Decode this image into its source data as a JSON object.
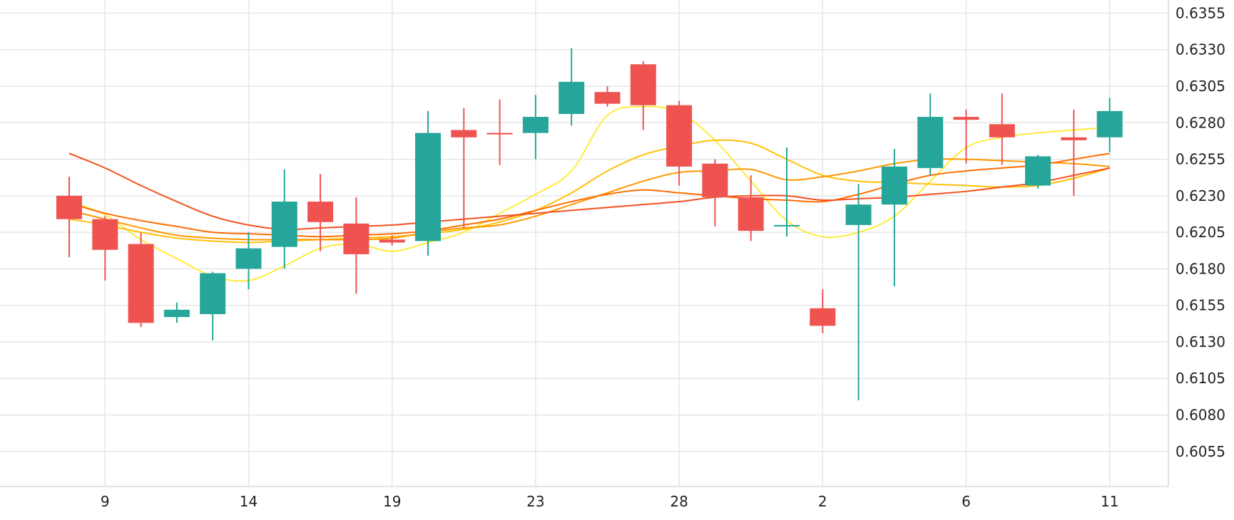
{
  "chart_data": {
    "type": "candlestick",
    "x_tick_labels": [
      "9",
      "14",
      "19",
      "23",
      "28",
      "2",
      "6",
      "11"
    ],
    "y_tick_labels": [
      "0.6055",
      "0.6080",
      "0.6105",
      "0.6130",
      "0.6155",
      "0.6180",
      "0.6205",
      "0.6230",
      "0.6255",
      "0.6280",
      "0.6305",
      "0.6330",
      "0.6355"
    ],
    "y_ticks": [
      0.6055,
      0.608,
      0.6105,
      0.613,
      0.6155,
      0.618,
      0.6205,
      0.623,
      0.6255,
      0.628,
      0.6305,
      0.633,
      0.6355
    ],
    "ylim": [
      0.6031,
      0.6364
    ],
    "grid": true,
    "colors": {
      "up": "#26a69a",
      "down": "#ef5350"
    },
    "candles": [
      {
        "o": 0.623,
        "h": 0.6243,
        "l": 0.6188,
        "c": 0.6214
      },
      {
        "o": 0.6214,
        "h": 0.6216,
        "l": 0.6172,
        "c": 0.6193
      },
      {
        "o": 0.6197,
        "h": 0.6205,
        "l": 0.614,
        "c": 0.6143
      },
      {
        "o": 0.6147,
        "h": 0.6157,
        "l": 0.6143,
        "c": 0.6152
      },
      {
        "o": 0.6149,
        "h": 0.6178,
        "l": 0.6131,
        "c": 0.6177
      },
      {
        "o": 0.618,
        "h": 0.6205,
        "l": 0.6166,
        "c": 0.6194
      },
      {
        "o": 0.6195,
        "h": 0.6248,
        "l": 0.618,
        "c": 0.6226
      },
      {
        "o": 0.6226,
        "h": 0.6245,
        "l": 0.6192,
        "c": 0.6212
      },
      {
        "o": 0.6211,
        "h": 0.6229,
        "l": 0.6163,
        "c": 0.619
      },
      {
        "o": 0.62,
        "h": 0.6203,
        "l": 0.6196,
        "c": 0.6198
      },
      {
        "o": 0.6199,
        "h": 0.6288,
        "l": 0.6189,
        "c": 0.6273
      },
      {
        "o": 0.6275,
        "h": 0.629,
        "l": 0.6208,
        "c": 0.627
      },
      {
        "o": 0.6273,
        "h": 0.6296,
        "l": 0.6251,
        "c": 0.6272
      },
      {
        "o": 0.6273,
        "h": 0.6299,
        "l": 0.6255,
        "c": 0.6284
      },
      {
        "o": 0.6286,
        "h": 0.6331,
        "l": 0.6278,
        "c": 0.6308
      },
      {
        "o": 0.6301,
        "h": 0.6305,
        "l": 0.6291,
        "c": 0.6293
      },
      {
        "o": 0.632,
        "h": 0.6322,
        "l": 0.6275,
        "c": 0.6292
      },
      {
        "o": 0.6292,
        "h": 0.6295,
        "l": 0.6237,
        "c": 0.625
      },
      {
        "o": 0.6252,
        "h": 0.6255,
        "l": 0.6209,
        "c": 0.6229
      },
      {
        "o": 0.6229,
        "h": 0.6244,
        "l": 0.6199,
        "c": 0.6206
      },
      {
        "o": 0.6209,
        "h": 0.6263,
        "l": 0.6202,
        "c": 0.621
      },
      {
        "o": 0.6153,
        "h": 0.6166,
        "l": 0.6136,
        "c": 0.6141
      },
      {
        "o": 0.621,
        "h": 0.6238,
        "l": 0.609,
        "c": 0.6224
      },
      {
        "o": 0.6224,
        "h": 0.6262,
        "l": 0.6168,
        "c": 0.625
      },
      {
        "o": 0.6249,
        "h": 0.63,
        "l": 0.6244,
        "c": 0.6284
      },
      {
        "o": 0.6284,
        "h": 0.6289,
        "l": 0.6252,
        "c": 0.6282
      },
      {
        "o": 0.6279,
        "h": 0.63,
        "l": 0.6251,
        "c": 0.627
      },
      {
        "o": 0.6237,
        "h": 0.6258,
        "l": 0.6235,
        "c": 0.6257
      },
      {
        "o": 0.627,
        "h": 0.6289,
        "l": 0.623,
        "c": 0.6268
      },
      {
        "o": 0.627,
        "h": 0.6297,
        "l": 0.626,
        "c": 0.6288
      }
    ],
    "series": [
      {
        "color": "#ffeb3b",
        "values": [
          0.6226,
          0.6217,
          0.62,
          0.6187,
          0.6175,
          0.6172,
          0.6182,
          0.6194,
          0.6197,
          0.6192,
          0.6198,
          0.6205,
          0.6218,
          0.6231,
          0.6247,
          0.6285,
          0.6291,
          0.6287,
          0.6268,
          0.624,
          0.6213,
          0.6202,
          0.6205,
          0.6216,
          0.624,
          0.6263,
          0.627,
          0.6273,
          0.6275,
          0.6277
        ]
      },
      {
        "color": "#ffc107",
        "values": [
          0.6214,
          0.621,
          0.6205,
          0.6201,
          0.6199,
          0.6198,
          0.6199,
          0.62,
          0.6201,
          0.6202,
          0.6204,
          0.6207,
          0.6212,
          0.622,
          0.6232,
          0.6247,
          0.6258,
          0.6264,
          0.6268,
          0.6266,
          0.6255,
          0.6244,
          0.624,
          0.6239,
          0.6238,
          0.6237,
          0.6236,
          0.6237,
          0.6242,
          0.6249
        ]
      },
      {
        "color": "#ff9800",
        "values": [
          0.622,
          0.6214,
          0.6208,
          0.6203,
          0.6201,
          0.62,
          0.62,
          0.62,
          0.62,
          0.6201,
          0.6205,
          0.6208,
          0.621,
          0.6216,
          0.6224,
          0.6232,
          0.624,
          0.6246,
          0.6247,
          0.6248,
          0.6241,
          0.6243,
          0.6247,
          0.6252,
          0.6255,
          0.6255,
          0.6254,
          0.6253,
          0.6252,
          0.625
        ]
      },
      {
        "color": "#ff6d00",
        "values": [
          0.6225,
          0.6218,
          0.6213,
          0.6209,
          0.6205,
          0.6204,
          0.6203,
          0.6202,
          0.6203,
          0.6204,
          0.6206,
          0.621,
          0.6214,
          0.622,
          0.6226,
          0.6231,
          0.6234,
          0.6232,
          0.623,
          0.6228,
          0.6227,
          0.6226,
          0.6231,
          0.6238,
          0.6244,
          0.6247,
          0.6249,
          0.6251,
          0.6255,
          0.6259
        ]
      },
      {
        "color": "#f4511e",
        "values": [
          0.6259,
          0.6249,
          0.6237,
          0.6226,
          0.6216,
          0.621,
          0.6207,
          0.6208,
          0.6209,
          0.621,
          0.6212,
          0.6214,
          0.6216,
          0.6218,
          0.622,
          0.6222,
          0.6224,
          0.6226,
          0.6229,
          0.623,
          0.623,
          0.6227,
          0.6228,
          0.6229,
          0.6231,
          0.6233,
          0.6236,
          0.6239,
          0.6244,
          0.6249
        ]
      }
    ]
  }
}
